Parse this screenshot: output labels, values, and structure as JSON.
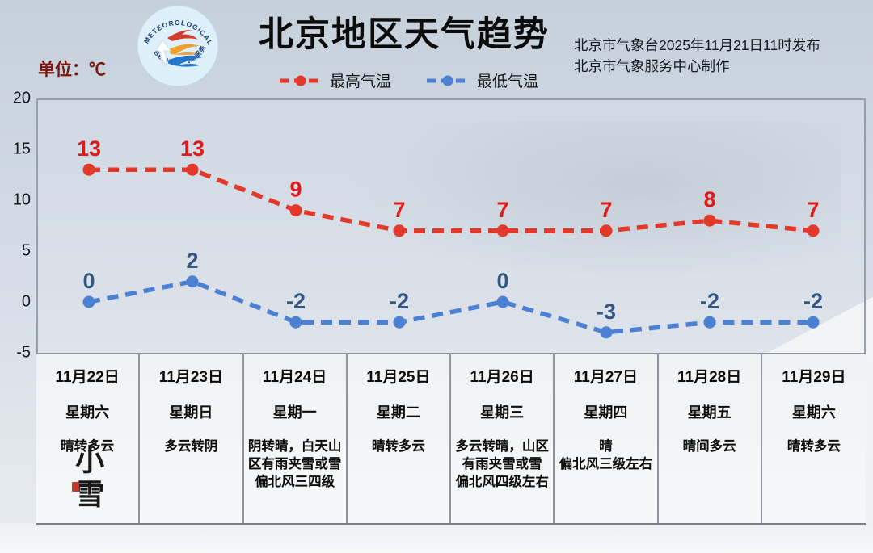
{
  "header": {
    "title": "北京地区天气趋势",
    "issue_line1": "北京市气象台2025年11月21日11时发布",
    "issue_line2": "北京市气象服务中心制作",
    "unit_label": "单位：℃",
    "logo_text_top": "METEOROLOGICAL SERVICE",
    "logo_text_bottom": "BEIJING  气象服务"
  },
  "legend": [
    {
      "label": "最高气温",
      "color": "#e2392a"
    },
    {
      "label": "最低气温",
      "color": "#4b80d2"
    }
  ],
  "axis": {
    "yticks": [
      "20",
      "15",
      "10",
      "5",
      "0",
      "-5"
    ]
  },
  "chart_data": {
    "type": "line",
    "title": "北京地区天气趋势",
    "ylabel": "单位：℃",
    "ylim": [
      -5,
      20
    ],
    "yticks": [
      20,
      15,
      10,
      5,
      0,
      -5
    ],
    "grid": false,
    "legend_position": "top",
    "line_style": "dashed",
    "categories": [
      "11月22日",
      "11月23日",
      "11月24日",
      "11月25日",
      "11月26日",
      "11月27日",
      "11月28日",
      "11月29日"
    ],
    "series": [
      {
        "name": "最高气温",
        "color": "#e2392a",
        "label_color": "#de1a1a",
        "values": [
          13,
          13,
          9,
          7,
          7,
          7,
          8,
          7
        ]
      },
      {
        "name": "最低气温",
        "color": "#4b80d2",
        "label_color": "#335782",
        "values": [
          0,
          2,
          -2,
          -2,
          0,
          -3,
          -2,
          -2
        ]
      }
    ]
  },
  "table": {
    "columns": [
      {
        "date": "11月22日",
        "weekday": "星期六",
        "weather": "晴转多云",
        "solar_term": "小雪"
      },
      {
        "date": "11月23日",
        "weekday": "星期日",
        "weather": "多云转阴"
      },
      {
        "date": "11月24日",
        "weekday": "星期一",
        "weather": "阴转晴，白天山区有雨夹雪或雪\n偏北风三四级"
      },
      {
        "date": "11月25日",
        "weekday": "星期二",
        "weather": "晴转多云"
      },
      {
        "date": "11月26日",
        "weekday": "星期三",
        "weather": "多云转晴，山区有雨夹雪或雪\n偏北风四级左右"
      },
      {
        "date": "11月27日",
        "weekday": "星期四",
        "weather": "晴\n偏北风三级左右"
      },
      {
        "date": "11月28日",
        "weekday": "星期五",
        "weather": "晴间多云"
      },
      {
        "date": "11月29日",
        "weekday": "星期六",
        "weather": "晴转多云"
      }
    ]
  }
}
